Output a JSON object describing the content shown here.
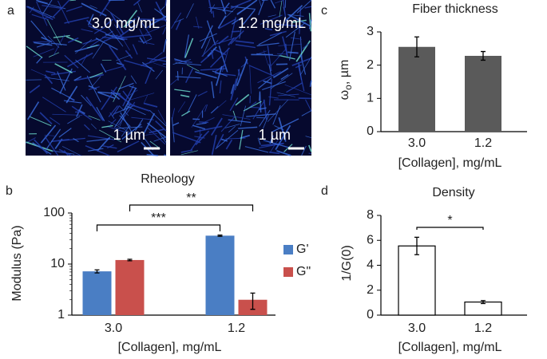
{
  "panel_labels": [
    "a",
    "b",
    "c",
    "d"
  ],
  "images": [
    {
      "label": "3.0 mg/mL",
      "scale_bar": "1 µm"
    },
    {
      "label": "1.2 mg/mL",
      "scale_bar": "1 µm"
    }
  ],
  "chart_data": [
    {
      "type": "bar",
      "title": "Rheology",
      "ylabel": "Modulus (Pa)",
      "xlabel": "[Collagen], mg/mL",
      "categories": [
        "3.0",
        "1.2"
      ],
      "log_y": true,
      "ylim": [
        1,
        100
      ],
      "yticks": [
        1,
        10,
        100
      ],
      "series": [
        {
          "name": "G'",
          "color": "#4a7ec4",
          "values": [
            7.2,
            36
          ],
          "errors": [
            0.5,
            1
          ]
        },
        {
          "name": "G\"",
          "color": "#c9504c",
          "values": [
            12,
            2
          ],
          "errors": [
            0.4,
            0.7
          ]
        }
      ],
      "legend": "right",
      "significance": [
        {
          "label": "***",
          "from": [
            0,
            0
          ],
          "to": [
            1,
            0
          ]
        },
        {
          "label": "**",
          "from": [
            0,
            1
          ],
          "to": [
            1,
            1
          ]
        }
      ]
    },
    {
      "type": "bar",
      "title": "Fiber thickness",
      "ylabel": {
        "symbol": "ω",
        "subscript": "o",
        "unit": ", µm"
      },
      "xlabel": "[Collagen], mg/mL",
      "categories": [
        "3.0",
        "1.2"
      ],
      "values": [
        2.55,
        2.28
      ],
      "errors": [
        0.3,
        0.13
      ],
      "color": "#5a5a5a",
      "ylim": [
        0,
        3
      ],
      "yticks": [
        0,
        1,
        2,
        3
      ]
    },
    {
      "type": "bar",
      "title": "Density",
      "ylabel": "1/G(0)",
      "xlabel": "[Collagen], mg/mL",
      "categories": [
        "3.0",
        "1.2"
      ],
      "values": [
        5.55,
        1.05
      ],
      "errors": [
        0.7,
        0.12
      ],
      "color": "#ffffff",
      "edgecolor": "#000000",
      "ylim": [
        0,
        8
      ],
      "yticks": [
        0,
        2,
        4,
        6,
        8
      ],
      "significance": [
        {
          "label": "*",
          "from": [
            0,
            0
          ],
          "to": [
            1,
            0
          ]
        }
      ]
    }
  ]
}
